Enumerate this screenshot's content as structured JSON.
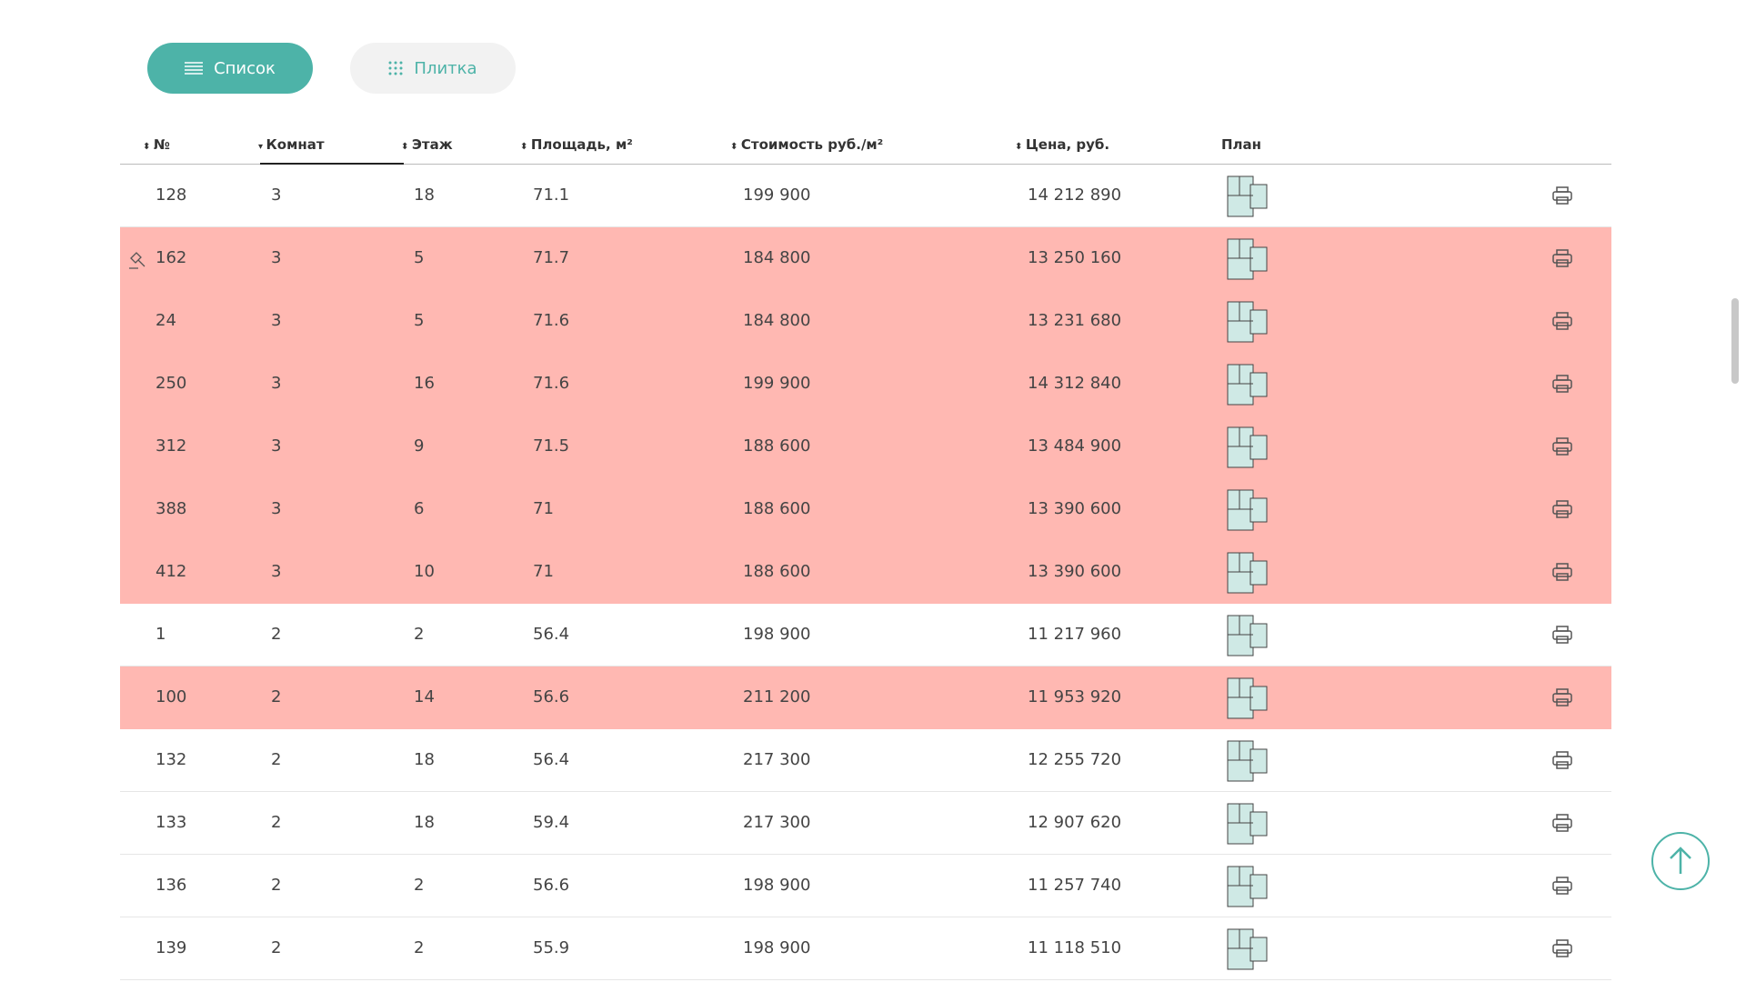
{
  "buttons": {
    "list": "Список",
    "tile": "Плитка"
  },
  "table": {
    "headers": [
      "№",
      "Комнат",
      "Этаж",
      "Площадь, м²",
      "Стоимость руб./м²",
      "Цена, руб.",
      "План"
    ],
    "rows": [
      {
        "cells": [
          "128",
          "3",
          "18",
          "71.1",
          "199 900",
          "14 212 890"
        ],
        "highlighted": false
      },
      {
        "cells": [
          "162",
          "3",
          "5",
          "71.7",
          "184 800",
          "13 250 160"
        ],
        "highlighted": true
      },
      {
        "cells": [
          "24",
          "3",
          "5",
          "71.6",
          "184 800",
          "13 231 680"
        ],
        "highlighted": true
      },
      {
        "cells": [
          "250",
          "3",
          "16",
          "71.6",
          "199 900",
          "14 312 840"
        ],
        "highlighted": true
      },
      {
        "cells": [
          "312",
          "3",
          "9",
          "71.5",
          "188 600",
          "13 484 900"
        ],
        "highlighted": true
      },
      {
        "cells": [
          "388",
          "3",
          "6",
          "71",
          "188 600",
          "13 390 600"
        ],
        "highlighted": true
      },
      {
        "cells": [
          "412",
          "3",
          "10",
          "71",
          "188 600",
          "13 390 600"
        ],
        "highlighted": true
      },
      {
        "cells": [
          "1",
          "2",
          "2",
          "56.4",
          "198 900",
          "11 217 960"
        ],
        "highlighted": false
      },
      {
        "cells": [
          "100",
          "2",
          "14",
          "56.6",
          "211 200",
          "11 953 920"
        ],
        "highlighted": true
      },
      {
        "cells": [
          "132",
          "2",
          "18",
          "56.4",
          "217 300",
          "12 255 720"
        ],
        "highlighted": false
      },
      {
        "cells": [
          "133",
          "2",
          "18",
          "59.4",
          "217 300",
          "12 907 620"
        ],
        "highlighted": false
      },
      {
        "cells": [
          "136",
          "2",
          "2",
          "56.6",
          "198 900",
          "11 257 740"
        ],
        "highlighted": false
      },
      {
        "cells": [
          "139",
          "2",
          "2",
          "55.9",
          "198 900",
          "11 118 510"
        ],
        "highlighted": false
      }
    ]
  }
}
